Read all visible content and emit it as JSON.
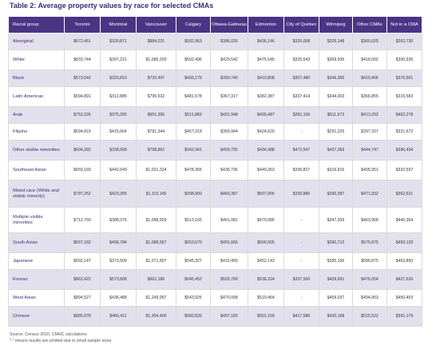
{
  "title": "Table 2: Average property values by race for selected CMAs",
  "headers": [
    "Racial group",
    "Toronto",
    "Montréal",
    "Vancouver",
    "Calgary",
    "Ottawa-Gatineau",
    "Edmonton",
    "City of Québec",
    "Winnipeg",
    "Other CMAs",
    "Not in a CMA"
  ],
  "rows": [
    {
      "race": "Aboriginal",
      "values": [
        "$672,451",
        "$320,871",
        "$884,231",
        "$502,963",
        "$386,026",
        "$436,146",
        "$326,058",
        "$326,148",
        "$360,025",
        "$262,730"
      ]
    },
    {
      "race": "White",
      "values": [
        "$833,744",
        "$397,221",
        "$1,085,203",
        "$592,496",
        "$429,542",
        "$475,545",
        "$325,543",
        "$369,506",
        "$418,602",
        "$300,935"
      ]
    },
    {
      "race": "Black",
      "values": [
        "$573,542",
        "$320,810",
        "$732,497",
        "$493,179",
        "$359,740",
        "$410,808",
        "$307,480",
        "$346,365",
        "$419,406",
        "$370,561"
      ]
    },
    {
      "race": "Latin American",
      "values": [
        "$594,891",
        "$312,885",
        "$795,532",
        "$481,578",
        "$367,317",
        "$382,387",
        "$337,414",
        "$344,003",
        "$366,855",
        "$315,583"
      ]
    },
    {
      "race": "Arab",
      "values": [
        "$752,226",
        "$375,355",
        "$951,395",
        "$511,883",
        "$431,948",
        "$490,487",
        "$281,106",
        "$511,673",
        "$413,292",
        "$402,278"
      ]
    },
    {
      "race": "Filipino",
      "values": [
        "$594,815",
        "$415,664",
        "$781,344",
        "$467,319",
        "$369,944",
        "$424,620",
        "-",
        "$291,226",
        "$397,337",
        "$331,672"
      ]
    },
    {
      "race": "Other visible minorities",
      "values": [
        "$604,392",
        "$338,568",
        "$798,861",
        "$542,941",
        "$459,792",
        "$434,388",
        "$472,547",
        "$437,369",
        "$444,747",
        "$386,434"
      ]
    },
    {
      "race": "Southeast Asian",
      "values": [
        "$659,169",
        "$442,649",
        "$1,021,324",
        "$478,365",
        "$435,796",
        "$449,363",
        "$336,827",
        "$316,916",
        "$405,951",
        "$332,597"
      ]
    },
    {
      "race": "Mixed race (White and visible minority)",
      "values": [
        "$797,252",
        "$423,305",
        "$1,119,145",
        "$598,900",
        "$469,387",
        "$507,066",
        "$339,886",
        "$390,387",
        "$471,932",
        "$362,621"
      ]
    },
    {
      "race": "Multiple visible minorities",
      "values": [
        "$712,769",
        "$388,375",
        "$1,098,929",
        "$513,165",
        "$461,081",
        "$470,085",
        "-",
        "$347,359",
        "$463,968",
        "$440,364"
      ]
    },
    {
      "race": "South Asian",
      "values": [
        "$697,182",
        "$468,784",
        "$1,088,557",
        "$553,670",
        "$491,666",
        "$509,505",
        "-",
        "$390,712",
        "$575,875",
        "$493,133"
      ]
    },
    {
      "race": "Japanese",
      "values": [
        "$692,147",
        "$373,509",
        "$1,071,807",
        "$545,327",
        "$415,455",
        "$452,143",
        "-",
        "$385,156",
        "$586,875",
        "$463,850"
      ]
    },
    {
      "race": "Korean",
      "values": [
        "$863,422",
        "$573,808",
        "$961,186",
        "$645,452",
        "$555,789",
        "$536,224",
        "$337,500",
        "$429,691",
        "$476,054",
        "$427,626"
      ]
    },
    {
      "race": "West Asian",
      "values": [
        "$894,527",
        "$436,488",
        "$1,249,997",
        "$543,925",
        "$470,058",
        "$519,464",
        "-",
        "$459,037",
        "$494,953",
        "$450,453"
      ]
    },
    {
      "race": "Chinese",
      "values": [
        "$885,078",
        "$466,411",
        "$1,354,400",
        "$560,520",
        "$497,183",
        "$501,159",
        "$417,586",
        "$420,168",
        "$515,522",
        "$391,179"
      ]
    }
  ],
  "source": "Source: Census 2016; CMHC calculations",
  "note": "\"-\" means results are omitted due to small sample sizes"
}
